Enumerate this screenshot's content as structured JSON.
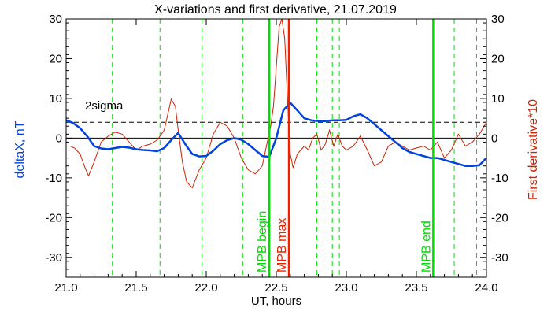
{
  "chart_data": {
    "type": "line",
    "title": "X-variations and first derivative, 21.07.2019",
    "xlabel": "UT, hours",
    "ylabel_left": "deltaX, nT",
    "ylabel_right": "First derivative*10",
    "xlim": [
      21.0,
      24.0
    ],
    "ylim": [
      -35,
      30
    ],
    "x_ticks": [
      "21.0",
      "21.5",
      "22.0",
      "22.5",
      "23.0",
      "23.5",
      "24.0"
    ],
    "y_ticks": [
      "30",
      "20",
      "10",
      "0",
      "-10",
      "-20",
      "-30"
    ],
    "y_tick_values": [
      30,
      20,
      10,
      0,
      -10,
      -20,
      -30
    ],
    "x_tick_values": [
      21.0,
      21.5,
      22.0,
      22.5,
      23.0,
      23.5,
      24.0
    ],
    "sigma_level": 4,
    "sigma_label": "2sigma",
    "colors": {
      "deltaX": "#0044dd",
      "derivative": "#cc2200",
      "mpb": "#00dd00",
      "max": "#ee2200",
      "axes": "#000000"
    },
    "series": [
      {
        "name": "deltaX, nT",
        "x": [
          21.0,
          21.05,
          21.1,
          21.15,
          21.2,
          21.25,
          21.3,
          21.35,
          21.4,
          21.45,
          21.5,
          21.55,
          21.6,
          21.65,
          21.7,
          21.75,
          21.8,
          21.85,
          21.9,
          21.95,
          22.0,
          22.05,
          22.1,
          22.15,
          22.2,
          22.25,
          22.3,
          22.35,
          22.4,
          22.45,
          22.5,
          22.55,
          22.6,
          22.65,
          22.7,
          22.75,
          22.8,
          22.85,
          22.9,
          22.95,
          23.0,
          23.05,
          23.1,
          23.15,
          23.2,
          23.25,
          23.3,
          23.35,
          23.4,
          23.45,
          23.5,
          23.55,
          23.6,
          23.65,
          23.7,
          23.75,
          23.8,
          23.85,
          23.9,
          23.95,
          24.0
        ],
        "y": [
          4.5,
          3.8,
          2.5,
          0.5,
          -2.0,
          -2.6,
          -2.8,
          -2.5,
          -2.2,
          -2.4,
          -2.8,
          -3.0,
          -3.1,
          -3.3,
          -2.5,
          -0.5,
          1.3,
          -1.5,
          -4.0,
          -4.6,
          -4.5,
          -3.2,
          -1.5,
          -0.5,
          0.0,
          -0.4,
          -1.5,
          -3.0,
          -4.5,
          -4.7,
          0.0,
          7.0,
          8.9,
          7.0,
          5.0,
          4.5,
          4.3,
          4.3,
          4.5,
          4.5,
          4.6,
          5.5,
          6.0,
          5.0,
          3.5,
          2.0,
          0.5,
          -1.0,
          -2.5,
          -3.5,
          -4.0,
          -4.5,
          -5.0,
          -5.0,
          -5.5,
          -6.0,
          -6.5,
          -7.0,
          -7.0,
          -6.8,
          -5.0
        ]
      },
      {
        "name": "First derivative*10",
        "x": [
          21.0,
          21.03,
          21.06,
          21.1,
          21.13,
          21.16,
          21.2,
          21.25,
          21.3,
          21.35,
          21.4,
          21.45,
          21.5,
          21.55,
          21.6,
          21.65,
          21.7,
          21.75,
          21.78,
          21.8,
          21.83,
          21.86,
          21.9,
          21.95,
          22.0,
          22.05,
          22.1,
          22.15,
          22.2,
          22.25,
          22.3,
          22.35,
          22.4,
          22.43,
          22.46,
          22.48,
          22.5,
          22.52,
          22.54,
          22.56,
          22.58,
          22.6,
          22.62,
          22.65,
          22.7,
          22.73,
          22.76,
          22.79,
          22.82,
          22.85,
          22.88,
          22.91,
          22.94,
          22.97,
          23.0,
          23.05,
          23.1,
          23.15,
          23.2,
          23.25,
          23.3,
          23.35,
          23.4,
          23.45,
          23.5,
          23.55,
          23.6,
          23.65,
          23.7,
          23.75,
          23.8,
          23.85,
          23.9,
          23.95,
          24.0
        ],
        "y": [
          -2.0,
          -2.0,
          -2.5,
          -4.0,
          -7.0,
          -9.5,
          -6.0,
          -1.0,
          0.5,
          1.5,
          1.0,
          -1.0,
          -3.0,
          -2.0,
          -1.5,
          -0.5,
          2.0,
          9.8,
          8.0,
          2.0,
          -6.0,
          -11.0,
          -12.5,
          -8.0,
          -5.0,
          1.0,
          4.0,
          3.0,
          0.0,
          -5.0,
          -8.0,
          -9.0,
          -7.0,
          -2.0,
          3.0,
          8.0,
          18.0,
          28.0,
          30.0,
          25.0,
          10.0,
          -4.0,
          -7.5,
          -4.0,
          -2.0,
          -3.0,
          0.0,
          1.0,
          -3.0,
          -1.5,
          2.0,
          -2.0,
          1.0,
          -2.0,
          -3.0,
          -2.0,
          0.5,
          -3.0,
          -7.0,
          -6.0,
          -2.0,
          -1.0,
          -2.0,
          -3.0,
          -2.5,
          -2.0,
          -3.0,
          -1.0,
          -5.0,
          -3.0,
          1.0,
          -2.0,
          -1.0,
          1.0,
          4.0
        ]
      }
    ],
    "vlines_dashed": [
      21.33,
      21.67,
      21.97,
      22.26,
      22.79,
      22.84,
      22.9,
      22.95,
      23.77,
      23.93
    ],
    "vlines": [
      {
        "x": 22.45,
        "label": "MPB begin",
        "color": "#00dd00"
      },
      {
        "x": 22.59,
        "label": "MPB max",
        "color": "#ee2200"
      },
      {
        "x": 23.62,
        "label": "MPB end",
        "color": "#00dd00"
      }
    ]
  }
}
